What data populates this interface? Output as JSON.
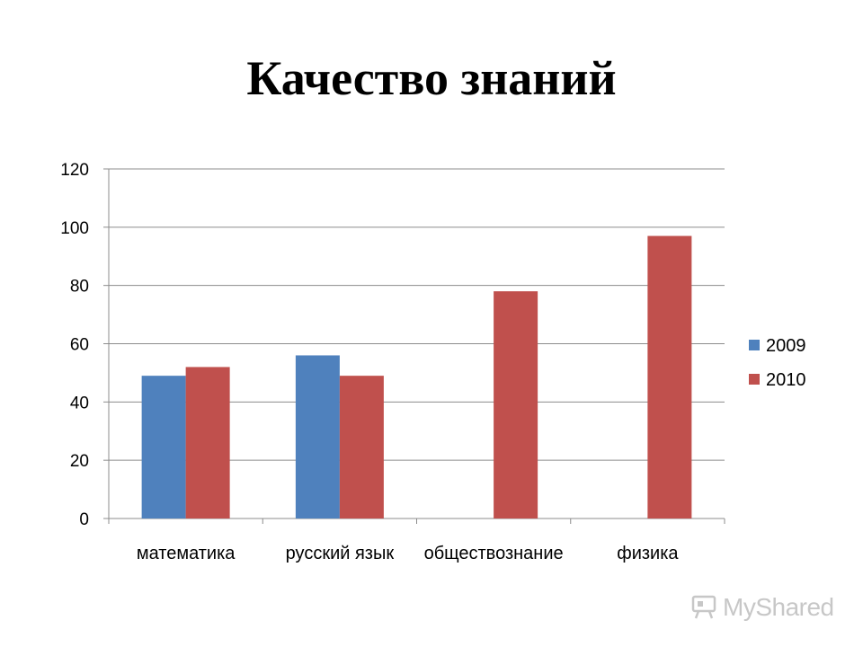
{
  "page": {
    "title": "Качество знаний"
  },
  "chart_data": {
    "type": "bar",
    "title": "Качество знаний",
    "categories": [
      "математика",
      "русский язык",
      "обществознание",
      "физика"
    ],
    "series": [
      {
        "name": "2009",
        "values": [
          49,
          56,
          null,
          null
        ],
        "color": "#4f81bd"
      },
      {
        "name": "2010",
        "values": [
          52,
          49,
          78,
          97
        ],
        "color": "#c0504d"
      }
    ],
    "ylim": [
      0,
      120
    ],
    "yticks": [
      0,
      20,
      40,
      60,
      80,
      100,
      120
    ],
    "grid": true,
    "legend": "right"
  },
  "watermark": {
    "text": "MyShared",
    "icon": "classroom-board-icon"
  }
}
